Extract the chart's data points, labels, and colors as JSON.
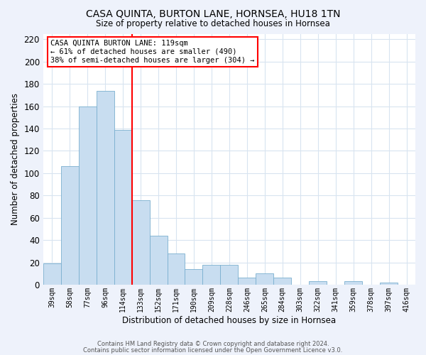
{
  "title": "CASA QUINTA, BURTON LANE, HORNSEA, HU18 1TN",
  "subtitle": "Size of property relative to detached houses in Hornsea",
  "xlabel": "Distribution of detached houses by size in Hornsea",
  "ylabel": "Number of detached properties",
  "bar_color": "#c8ddf0",
  "bar_edge_color": "#7aafcf",
  "vline_color": "red",
  "categories": [
    "39sqm",
    "58sqm",
    "77sqm",
    "96sqm",
    "114sqm",
    "133sqm",
    "152sqm",
    "171sqm",
    "190sqm",
    "209sqm",
    "228sqm",
    "246sqm",
    "265sqm",
    "284sqm",
    "303sqm",
    "322sqm",
    "341sqm",
    "359sqm",
    "378sqm",
    "397sqm",
    "416sqm"
  ],
  "values": [
    19,
    106,
    160,
    174,
    139,
    76,
    44,
    28,
    14,
    18,
    18,
    6,
    10,
    6,
    0,
    3,
    0,
    3,
    0,
    2,
    0
  ],
  "ylim": [
    0,
    225
  ],
  "yticks": [
    0,
    20,
    40,
    60,
    80,
    100,
    120,
    140,
    160,
    180,
    200,
    220
  ],
  "annotation_title": "CASA QUINTA BURTON LANE: 119sqm",
  "annotation_line1": "← 61% of detached houses are smaller (490)",
  "annotation_line2": "38% of semi-detached houses are larger (304) →",
  "annotation_box_color": "white",
  "annotation_box_edge": "red",
  "footer1": "Contains HM Land Registry data © Crown copyright and database right 2024.",
  "footer2": "Contains public sector information licensed under the Open Government Licence v3.0.",
  "plot_bg_color": "white",
  "fig_bg_color": "#eef2fb",
  "grid_color": "#d8e4f0"
}
